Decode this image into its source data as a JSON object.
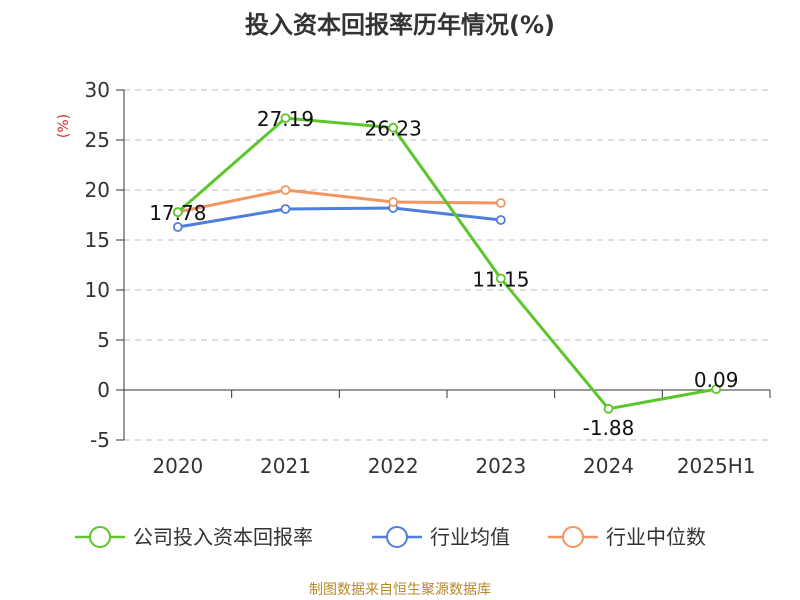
{
  "chart_data": {
    "type": "line",
    "title": "投入资本回报率历年情况(%)",
    "ylabel": "(%)",
    "categories": [
      "2020",
      "2021",
      "2022",
      "2023",
      "2024",
      "2025H1"
    ],
    "yticks": [
      "30",
      "25",
      "20",
      "15",
      "10",
      "5",
      "0",
      "-5"
    ],
    "ylim": [
      -5,
      30
    ],
    "grid": true,
    "legend_position": "bottom",
    "series": [
      {
        "name": "公司投入资本回报率",
        "color": "#5cc62a",
        "values": [
          17.78,
          27.19,
          26.23,
          11.15,
          -1.88,
          0.09
        ],
        "labels": [
          "17.78",
          "27.19",
          "26.23",
          "11.15",
          "-1.88",
          "0.09"
        ]
      },
      {
        "name": "行业均值",
        "color": "#4f7fdc",
        "values": [
          16.3,
          18.1,
          18.2,
          17.0,
          null,
          null
        ]
      },
      {
        "name": "行业中位数",
        "color": "#f49561",
        "values": [
          17.8,
          20.0,
          18.8,
          18.7,
          null,
          null
        ]
      }
    ]
  },
  "source": "制图数据来自恒生聚源数据库"
}
